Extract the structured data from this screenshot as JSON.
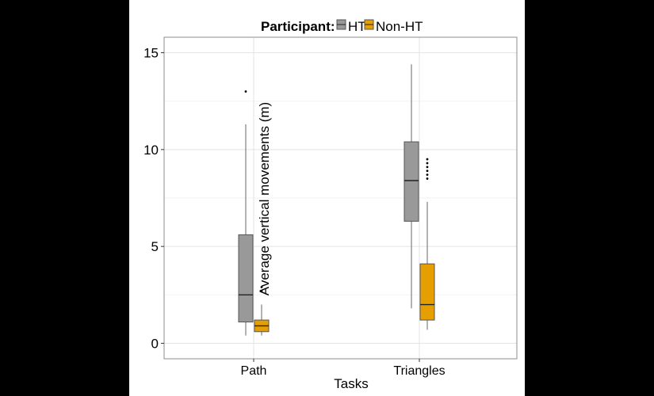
{
  "chart_data": {
    "type": "box",
    "xlabel": "Tasks",
    "ylabel": "Average vertical movements (m)",
    "ylim": [
      -0.8,
      15.8
    ],
    "yticks": [
      0,
      5,
      10,
      15
    ],
    "grid": true,
    "legend": {
      "title": "Participant:",
      "placement": "top",
      "entries": [
        {
          "name": "HT",
          "color": "#999999"
        },
        {
          "name": "Non-HT",
          "color": "#E69F00"
        }
      ]
    },
    "categories": [
      "Path",
      "Triangles"
    ],
    "series": [
      {
        "name": "HT",
        "color": "#999999",
        "boxes": [
          {
            "category": "Path",
            "whisker_low": 0.4,
            "q1": 1.1,
            "median": 2.5,
            "q3": 5.6,
            "whisker_high": 11.3,
            "outliers": [
              13.0
            ]
          },
          {
            "category": "Triangles",
            "whisker_low": 1.8,
            "q1": 6.3,
            "median": 8.4,
            "q3": 10.4,
            "whisker_high": 14.4,
            "outliers": []
          }
        ]
      },
      {
        "name": "Non-HT",
        "color": "#E69F00",
        "boxes": [
          {
            "category": "Path",
            "whisker_low": 0.4,
            "q1": 0.6,
            "median": 0.9,
            "q3": 1.2,
            "whisker_high": 2.0,
            "outliers": [
              2.7,
              2.9
            ]
          },
          {
            "category": "Triangles",
            "whisker_low": 0.7,
            "q1": 1.2,
            "median": 2.0,
            "q3": 4.1,
            "whisker_high": 7.3,
            "outliers": [
              8.5,
              8.7,
              8.9,
              9.1,
              9.3,
              9.5
            ]
          }
        ]
      }
    ]
  }
}
